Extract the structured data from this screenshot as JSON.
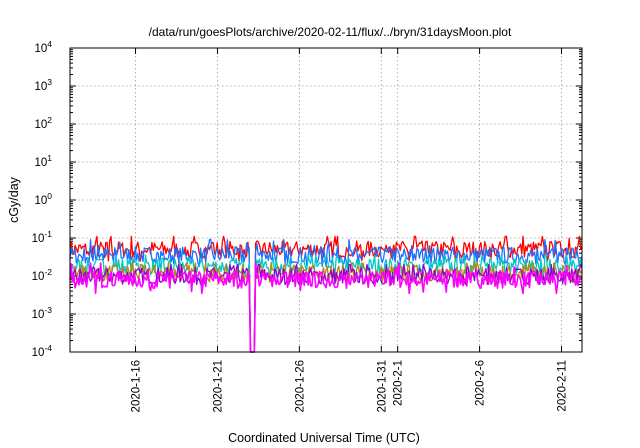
{
  "chart_data": {
    "type": "line",
    "title": "/data/run/goesPlots/archive/2020-02-11/flux/../bryn/31daysMoon.plot",
    "xlabel": "Coordinated Universal Time (UTC)",
    "ylabel": "cGy/day",
    "yscale": "log",
    "ylim": [
      0.0001,
      10000
    ],
    "xlim": [
      "2020-01-12T00:00",
      "2020-02-12T06:00"
    ],
    "grid": true,
    "legend": "none",
    "y_ticks": [
      {
        "base": "10",
        "exp": "-4",
        "value": 0.0001
      },
      {
        "base": "10",
        "exp": "-3",
        "value": 0.001
      },
      {
        "base": "10",
        "exp": "-2",
        "value": 0.01
      },
      {
        "base": "10",
        "exp": "-1",
        "value": 0.1
      },
      {
        "base": "10",
        "exp": "0",
        "value": 1
      },
      {
        "base": "10",
        "exp": "1",
        "value": 10
      },
      {
        "base": "10",
        "exp": "2",
        "value": 100
      },
      {
        "base": "10",
        "exp": "3",
        "value": 1000
      },
      {
        "base": "10",
        "exp": "4",
        "value": 10000
      }
    ],
    "x_ticks": [
      {
        "label": "2020-1-16",
        "date": "2020-01-16"
      },
      {
        "label": "2020-1-21",
        "date": "2020-01-21"
      },
      {
        "label": "2020-1-26",
        "date": "2020-01-26"
      },
      {
        "label": "2020-1-31",
        "date": "2020-01-31"
      },
      {
        "label": "2020-2-1",
        "date": "2020-02-01"
      },
      {
        "label": "2020-2-6",
        "date": "2020-02-06"
      },
      {
        "label": "2020-2-11",
        "date": "2020-02-11"
      }
    ],
    "series": [
      {
        "color": "#ff0000",
        "level": 0.05,
        "min": 0.025,
        "max": 0.11
      },
      {
        "color": "#1e6fff",
        "level": 0.035,
        "min": 0.018,
        "max": 0.09
      },
      {
        "color": "#00c8c8",
        "level": 0.018,
        "min": 0.009,
        "max": 0.035
      },
      {
        "color": "#b8860b",
        "level": 0.012,
        "min": 0.007,
        "max": 0.022
      },
      {
        "color": "#9400d3",
        "level": 0.01,
        "min": 0.006,
        "max": 0.02
      },
      {
        "color": "#ff00ff",
        "level": 0.008,
        "min": 0.0035,
        "max": 0.022
      }
    ],
    "dropout": {
      "date": "2020-01-23T04:00",
      "min_value": 0.0001
    }
  }
}
